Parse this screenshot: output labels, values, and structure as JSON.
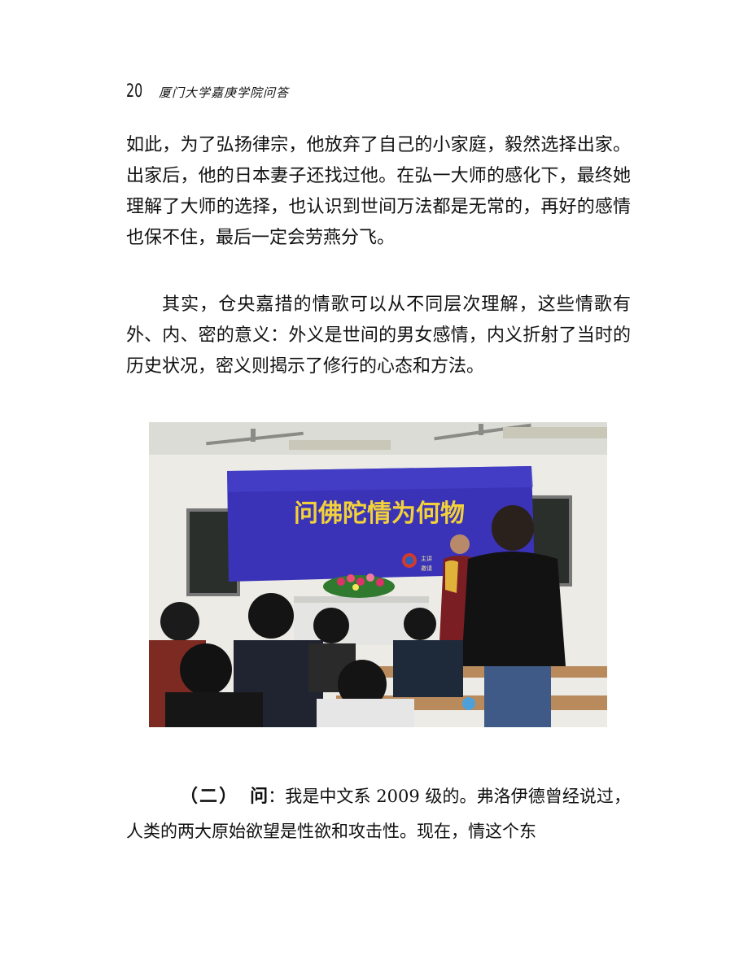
{
  "header": {
    "page_number": "20",
    "book_title": "厦门大学嘉庚学院问答"
  },
  "paragraphs": [
    "如此，为了弘扬律宗，他放弃了自己的小家庭，毅然选择出家。出家后，他的日本妻子还找过他。在弘一大师的感化下，最终她理解了大师的选择，也认识到世间万法都是无常的，再好的感情也保不住，最后一定会劳燕分飞。",
    "其实，仓央嘉措的情歌可以从不同层次理解，这些情歌有外、内、密的意义：外义是世间的男女感情，内义折射了当时的历史状况，密义则揭示了修行的心态和方法。"
  ],
  "photo": {
    "banner_title": "问佛陀情为何物",
    "banner_small_1": "主讲",
    "banner_small_2": "邀请"
  },
  "question": {
    "label": "（二）",
    "word": "问",
    "text": "：我是中文系 2009 级的。弗洛伊德曾经说过，人类的两大原始欲望是性欲和攻击性。现在，情这个东"
  }
}
